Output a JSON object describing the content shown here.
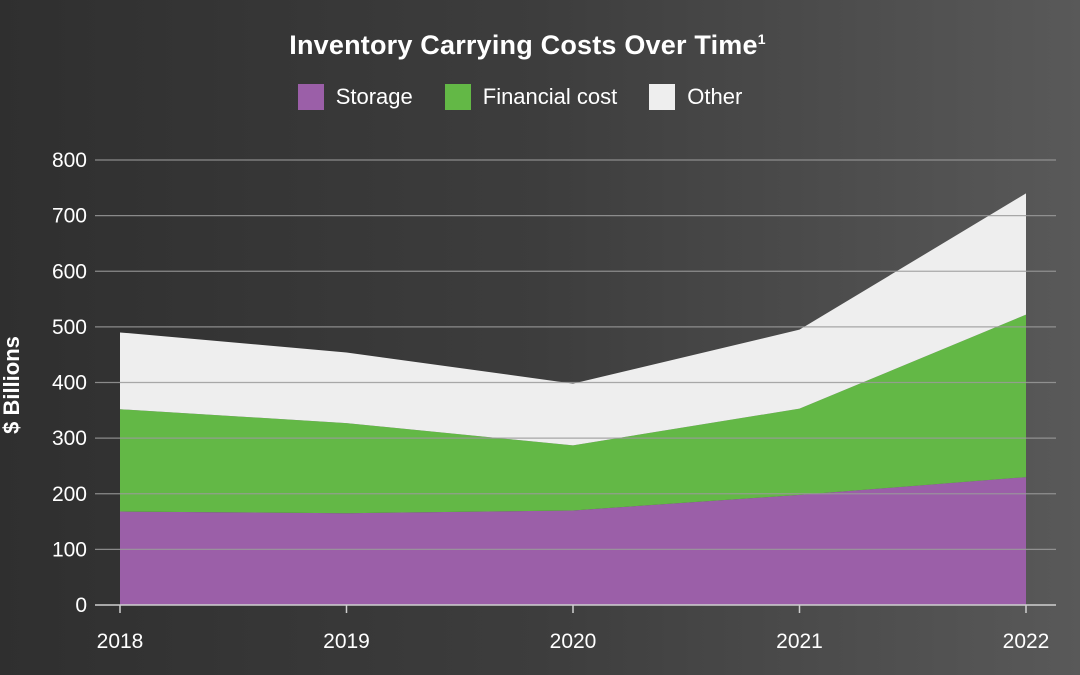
{
  "title": "Inventory Carrying Costs Over Time",
  "title_sup": "1",
  "chart_data": {
    "type": "area",
    "stacked": true,
    "title": "Inventory Carrying Costs Over Time¹",
    "ylabel": "$ Billions",
    "xlabel": "",
    "ylim": [
      0,
      800
    ],
    "yticks": [
      0,
      100,
      200,
      300,
      400,
      500,
      600,
      700,
      800
    ],
    "categories": [
      "2018",
      "2019",
      "2020",
      "2021",
      "2022"
    ],
    "series": [
      {
        "name": "Storage",
        "color": "#9b5fa8",
        "values": [
          168,
          165,
          170,
          198,
          230
        ]
      },
      {
        "name": "Financial cost",
        "color": "#63b846",
        "values": [
          184,
          162,
          117,
          155,
          292
        ]
      },
      {
        "name": "Other",
        "color": "#eeeeee",
        "values": [
          138,
          127,
          111,
          142,
          218
        ]
      }
    ],
    "grid": true,
    "legend": "top"
  }
}
